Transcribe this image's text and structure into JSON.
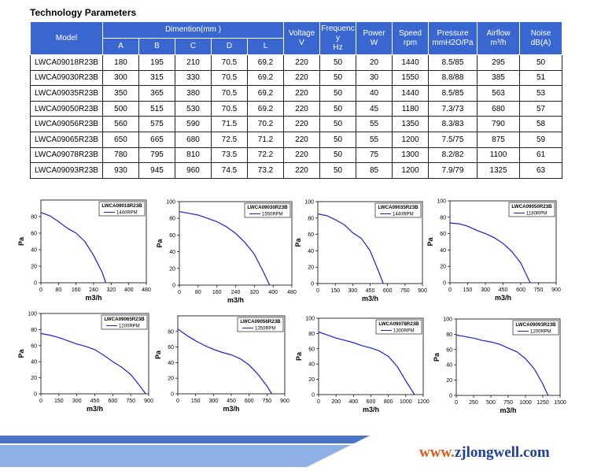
{
  "title": "Technology Parameters",
  "table": {
    "headers": {
      "model": "Model",
      "dimention": "Dimention(mm )",
      "dims": [
        "A",
        "B",
        "C",
        "D",
        "L"
      ],
      "voltage": [
        "Voltage",
        "V"
      ],
      "frequency": [
        "Frequenc",
        "y",
        "Hz"
      ],
      "power": [
        "Power",
        "W"
      ],
      "speed": [
        "Speed",
        "rpm"
      ],
      "pressure": [
        "Pressure",
        "mmH2O/Pa"
      ],
      "airflow": [
        "Airflow",
        "m³/h"
      ],
      "noise": [
        "Noise",
        "dB(A)"
      ]
    },
    "rows": [
      [
        "LWCA09018R23B",
        "180",
        "195",
        "210",
        "70.5",
        "69.2",
        "220",
        "50",
        "20",
        "1440",
        "8.5/85",
        "295",
        "50"
      ],
      [
        "LWCA09030R23B",
        "300",
        "315",
        "330",
        "70.5",
        "69.2",
        "220",
        "50",
        "30",
        "1550",
        "8.8/88",
        "385",
        "51"
      ],
      [
        "LWCA09035R23B",
        "350",
        "365",
        "380",
        "70.5",
        "69.2",
        "220",
        "50",
        "40",
        "1440",
        "8.5/85",
        "563",
        "53"
      ],
      [
        "LWCA09050R23B",
        "500",
        "515",
        "530",
        "70.5",
        "69.2",
        "220",
        "50",
        "45",
        "1180",
        "7.3/73",
        "680",
        "57"
      ],
      [
        "LWCA09056R23B",
        "560",
        "575",
        "590",
        "71.5",
        "70.2",
        "220",
        "50",
        "55",
        "1350",
        "8.3/83",
        "790",
        "58"
      ],
      [
        "LWCA09065R23B",
        "650",
        "665",
        "680",
        "72.5",
        "71.2",
        "220",
        "50",
        "55",
        "1200",
        "7.5/75",
        "875",
        "59"
      ],
      [
        "LWCA09078R23B",
        "780",
        "795",
        "810",
        "73.5",
        "72.2",
        "220",
        "50",
        "75",
        "1300",
        "8.2/82",
        "1100",
        "61"
      ],
      [
        "LWCA09093R23B",
        "930",
        "945",
        "960",
        "74.5",
        "73.2",
        "220",
        "50",
        "85",
        "1200",
        "7.9/79",
        "1325",
        "63"
      ]
    ]
  },
  "chart_data": [
    {
      "type": "line",
      "title": "LWCA09018R23B",
      "series": [
        {
          "name": "1440RPM",
          "x": [
            0,
            40,
            80,
            120,
            160,
            200,
            240,
            280,
            295
          ],
          "y": [
            85,
            81,
            74,
            66,
            60,
            50,
            33,
            12,
            0
          ]
        }
      ],
      "xlabel": "m3/h",
      "ylabel": "Pa",
      "xticks": [
        "0",
        "80",
        "160",
        "240",
        "320",
        "400",
        "480"
      ],
      "yticks": [
        "0",
        "20",
        "40",
        "60",
        "80"
      ],
      "xlim": [
        0,
        480
      ],
      "ylim": [
        0,
        100
      ]
    },
    {
      "type": "line",
      "title": "LWCA09030R23B",
      "series": [
        {
          "name": "1550RPM",
          "x": [
            0,
            40,
            80,
            120,
            160,
            200,
            240,
            280,
            320,
            360,
            385
          ],
          "y": [
            88,
            86,
            84,
            80,
            76,
            70,
            62,
            51,
            37,
            15,
            0
          ]
        }
      ],
      "xlabel": "m3/h",
      "ylabel": "Pa",
      "xticks": [
        "0",
        "80",
        "160",
        "240",
        "320",
        "400",
        "480"
      ],
      "yticks": [
        "0",
        "20",
        "40",
        "60",
        "80",
        "100"
      ],
      "xlim": [
        0,
        480
      ],
      "ylim": [
        0,
        100
      ]
    },
    {
      "type": "line",
      "title": "LWCA09035R23B",
      "series": [
        {
          "name": "1440RPM",
          "x": [
            0,
            75,
            150,
            225,
            300,
            375,
            450,
            525,
            563
          ],
          "y": [
            85,
            83,
            78,
            72,
            62,
            55,
            40,
            14,
            0
          ]
        }
      ],
      "xlabel": "m3/h",
      "ylabel": "Pa",
      "xticks": [
        "0",
        "150",
        "300",
        "450",
        "600",
        "750",
        "900"
      ],
      "yticks": [
        "0",
        "20",
        "40",
        "60",
        "80",
        "100"
      ],
      "xlim": [
        0,
        900
      ],
      "ylim": [
        0,
        100
      ]
    },
    {
      "type": "line",
      "title": "LWCA09050R23B",
      "series": [
        {
          "name": "1180RPM",
          "x": [
            0,
            75,
            150,
            225,
            300,
            375,
            450,
            525,
            600,
            680
          ],
          "y": [
            73,
            72,
            69,
            64,
            60,
            55,
            48,
            38,
            24,
            0
          ]
        }
      ],
      "xlabel": "m3/h",
      "ylabel": "Pa",
      "xticks": [
        "0",
        "150",
        "300",
        "450",
        "600",
        "750",
        "900"
      ],
      "yticks": [
        "0",
        "20",
        "40",
        "60",
        "80",
        "100"
      ],
      "xlim": [
        0,
        900
      ],
      "ylim": [
        0,
        100
      ]
    },
    {
      "type": "line",
      "title": "LWCA09065R23B",
      "series": [
        {
          "name": "1200RPM",
          "x": [
            0,
            75,
            150,
            225,
            300,
            375,
            450,
            525,
            600,
            675,
            750,
            825,
            875
          ],
          "y": [
            75,
            73,
            70,
            66,
            62,
            59,
            55,
            48,
            40,
            33,
            24,
            10,
            0
          ]
        }
      ],
      "xlabel": "m3/h",
      "ylabel": "Pa",
      "xticks": [
        "0",
        "150",
        "300",
        "450",
        "600",
        "750",
        "900"
      ],
      "yticks": [
        "0",
        "20",
        "40",
        "60",
        "80",
        "100"
      ],
      "xlim": [
        0,
        900
      ],
      "ylim": [
        0,
        100
      ]
    },
    {
      "type": "line",
      "title": "LWCA09056R23B",
      "series": [
        {
          "name": "1350RPM",
          "x": [
            0,
            75,
            150,
            225,
            300,
            375,
            450,
            525,
            600,
            675,
            750,
            790
          ],
          "y": [
            83,
            75,
            68,
            62,
            57,
            53,
            50,
            45,
            37,
            25,
            10,
            0
          ]
        }
      ],
      "xlabel": "m3/h",
      "ylabel": "Pa",
      "xticks": [
        "0",
        "150",
        "300",
        "450",
        "600",
        "750",
        "900"
      ],
      "yticks": [
        "0",
        "20",
        "40",
        "60",
        "80"
      ],
      "xlim": [
        0,
        900
      ],
      "ylim": [
        0,
        100
      ]
    },
    {
      "type": "line",
      "title": "LWCA09078R23B",
      "series": [
        {
          "name": "1300RPM",
          "x": [
            0,
            100,
            200,
            300,
            400,
            500,
            600,
            700,
            800,
            900,
            1000,
            1100
          ],
          "y": [
            82,
            78,
            74,
            71,
            68,
            64,
            61,
            57,
            50,
            37,
            18,
            0
          ]
        }
      ],
      "xlabel": "m3/h",
      "ylabel": "Pa",
      "xticks": [
        "0",
        "200",
        "400",
        "600",
        "800",
        "1000",
        "1200"
      ],
      "yticks": [
        "0",
        "20",
        "40",
        "60",
        "80",
        "100"
      ],
      "xlim": [
        0,
        1200
      ],
      "ylim": [
        0,
        100
      ]
    },
    {
      "type": "line",
      "title": "LWCA09093R23B",
      "series": [
        {
          "name": "1200RPM",
          "x": [
            0,
            125,
            250,
            375,
            500,
            625,
            750,
            875,
            1000,
            1125,
            1250,
            1325
          ],
          "y": [
            79,
            77,
            75,
            72,
            70,
            67,
            62,
            57,
            48,
            35,
            15,
            0
          ]
        }
      ],
      "xlabel": "m3/h",
      "ylabel": "Pa",
      "xticks": [
        "0",
        "250",
        "500",
        "750",
        "1000",
        "1250",
        "1500"
      ],
      "yticks": [
        "0",
        "20",
        "40",
        "60",
        "80",
        "100"
      ],
      "xlim": [
        0,
        1500
      ],
      "ylim": [
        0,
        100
      ]
    }
  ],
  "footer": {
    "www": "www.",
    "domain": "zjlongwell.com",
    "accent": "#e05a12",
    "brand": "#1d3f9e",
    "band_color": "#4a76c8"
  },
  "colors": {
    "header_bg": "#3a67cf",
    "curve": "#1a1fd1"
  }
}
